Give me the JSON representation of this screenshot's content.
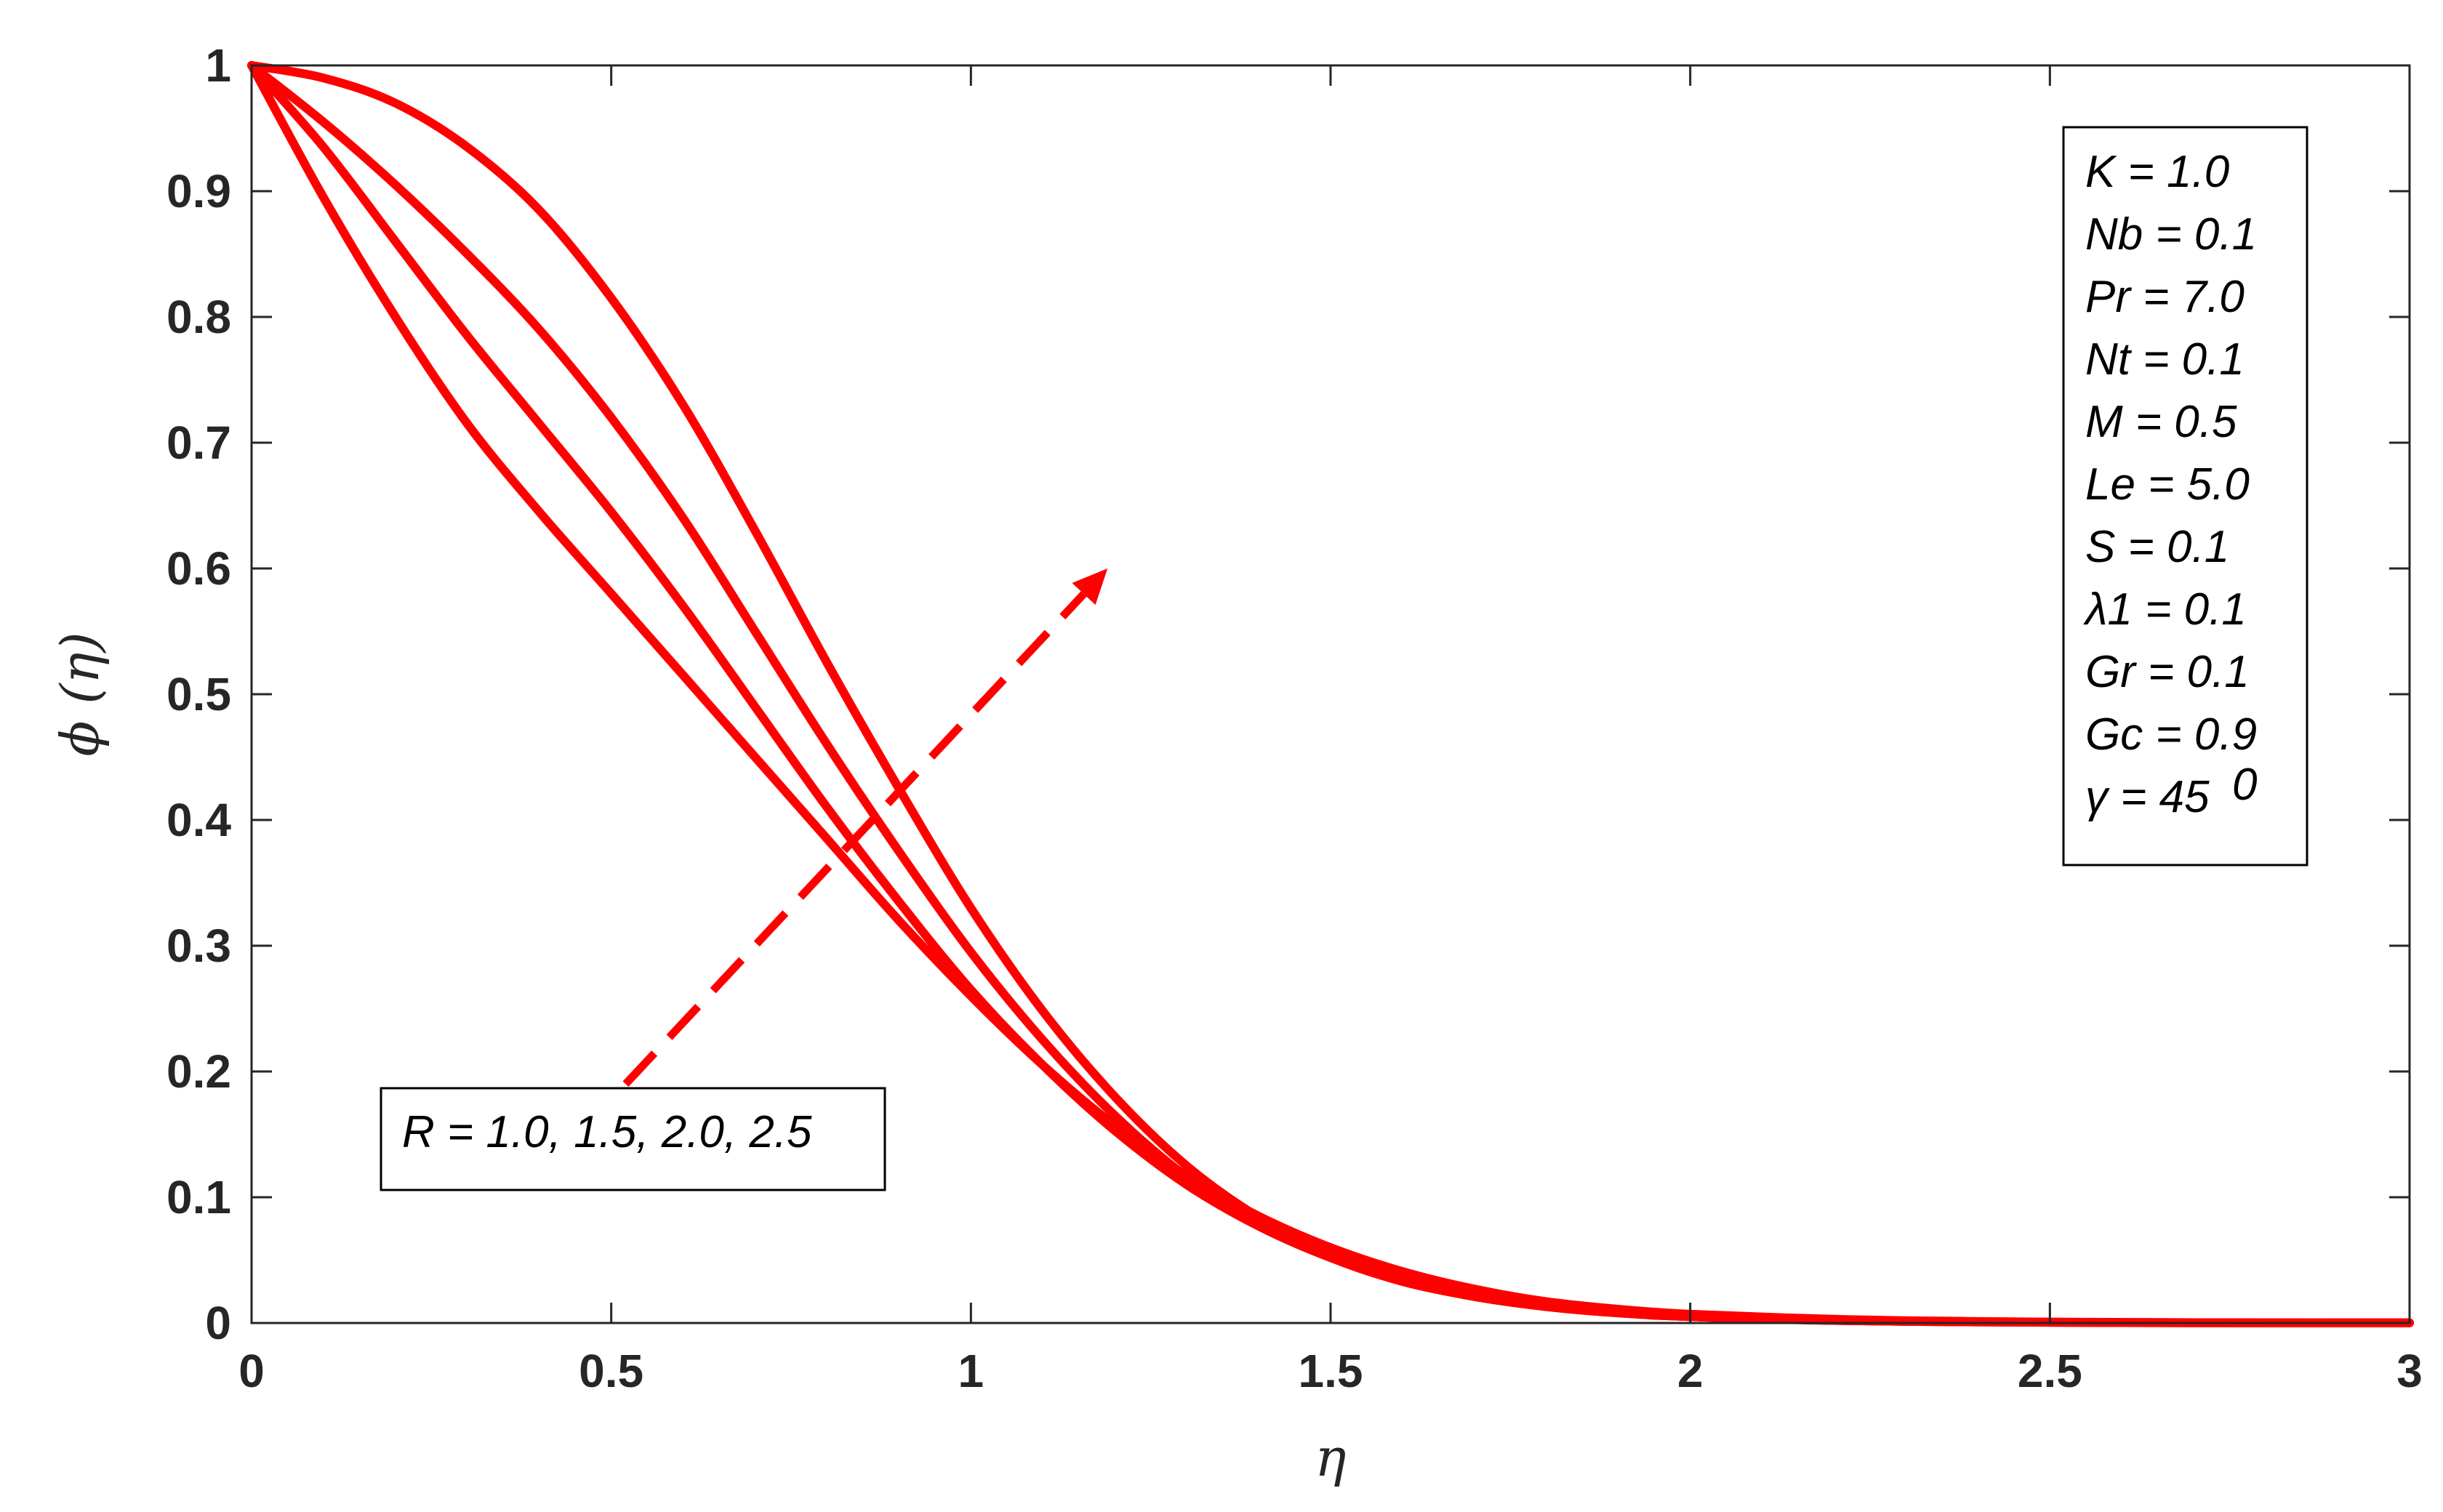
{
  "chart_data": {
    "type": "line",
    "title": "",
    "xlabel": "η",
    "ylabel": "ϕ (η)",
    "xlim": [
      0,
      3
    ],
    "ylim": [
      0,
      1
    ],
    "x_ticks": [
      "0",
      "0.5",
      "1",
      "1.5",
      "2",
      "2.5",
      "3"
    ],
    "y_ticks": [
      "0",
      "0.1",
      "0.2",
      "0.3",
      "0.4",
      "0.5",
      "0.6",
      "0.7",
      "0.8",
      "0.9",
      "1"
    ],
    "grid": false,
    "color": "#ff0000",
    "x": [
      0,
      0.1,
      0.2,
      0.3,
      0.4,
      0.5,
      0.6,
      0.7,
      0.8,
      0.9,
      1.0,
      1.1,
      1.2,
      1.3,
      1.4,
      1.5,
      1.6,
      1.7,
      1.8,
      1.9,
      2.0,
      2.2,
      2.4,
      2.6,
      2.8,
      3.0
    ],
    "series": [
      {
        "values": [
          1.0,
          0.895,
          0.8,
          0.715,
          0.645,
          0.58,
          0.515,
          0.45,
          0.385,
          0.32,
          0.26,
          0.205,
          0.157,
          0.117,
          0.085,
          0.06,
          0.041,
          0.027,
          0.017,
          0.011,
          0.007,
          0.003,
          0.0012,
          0.0005,
          0.0002,
          0.0001
        ]
      },
      {
        "values": [
          1.0,
          0.935,
          0.86,
          0.785,
          0.715,
          0.645,
          0.57,
          0.49,
          0.41,
          0.335,
          0.265,
          0.205,
          0.153,
          0.11,
          0.077,
          0.052,
          0.034,
          0.022,
          0.014,
          0.009,
          0.005,
          0.002,
          0.0009,
          0.0004,
          0.0002,
          0.0001
        ]
      },
      {
        "values": [
          1.0,
          0.955,
          0.905,
          0.85,
          0.79,
          0.72,
          0.64,
          0.55,
          0.46,
          0.375,
          0.295,
          0.225,
          0.165,
          0.116,
          0.079,
          0.052,
          0.033,
          0.021,
          0.013,
          0.008,
          0.005,
          0.002,
          0.0008,
          0.0003,
          0.0001,
          0.0001
        ]
      },
      {
        "values": [
          1.0,
          0.99,
          0.97,
          0.935,
          0.885,
          0.815,
          0.73,
          0.63,
          0.525,
          0.425,
          0.33,
          0.248,
          0.18,
          0.125,
          0.084,
          0.054,
          0.034,
          0.021,
          0.013,
          0.008,
          0.005,
          0.002,
          0.0008,
          0.0003,
          0.0001,
          0.0001
        ]
      }
    ],
    "parameter_box": [
      "K = 1.0",
      "Nb = 0.1",
      "Pr = 7.0",
      "Nt = 0.1",
      "M = 0.5",
      "Le = 5.0",
      "S = 0.1",
      "λ1 = 0.1",
      "Gr = 0.1",
      "Gc = 0.9",
      "γ = 45"
    ],
    "gamma_superscript": "0",
    "annotation": {
      "text": "R = 1.0, 1.5, 2.0, 2.5",
      "arrow_from": [
        0.52,
        0.19
      ],
      "arrow_to": [
        1.19,
        0.6
      ]
    }
  }
}
